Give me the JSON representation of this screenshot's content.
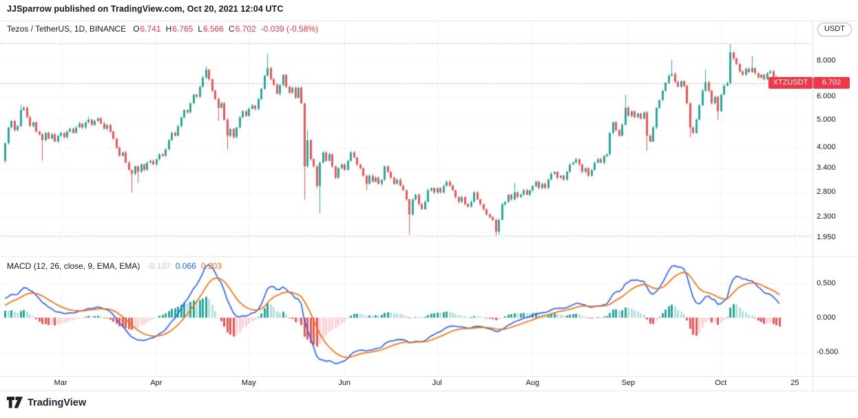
{
  "attribution": {
    "text": "JJSparrow published on TradingView.com, Oct 20, 2021 12:04 UTC"
  },
  "header": {
    "symbol_title": "Tezos / TetherUS, 1D, BINANCE",
    "ohlc": [
      {
        "label": "O",
        "value": "6.741"
      },
      {
        "label": "H",
        "value": "6.765"
      },
      {
        "label": "L",
        "value": "6.566"
      },
      {
        "label": "C",
        "value": "6.702"
      }
    ],
    "change": "-0.039 (-0.58%)"
  },
  "price_scale": {
    "currency_button": "USDT",
    "labels": [
      {
        "text": "8.000",
        "value": 8
      },
      {
        "text": "6.000",
        "value": 6
      },
      {
        "text": "5.000",
        "value": 5
      },
      {
        "text": "4.000",
        "value": 4
      },
      {
        "text": "3.400",
        "value": 3.4
      },
      {
        "text": "2.800",
        "value": 2.8
      },
      {
        "text": "2.300",
        "value": 2.3
      },
      {
        "text": "1.950",
        "value": 1.95
      }
    ],
    "last_price_label": {
      "symbol": "XTZUSDT",
      "price": "6.702",
      "value": 6.702
    }
  },
  "macd_panel": {
    "title": "MACD",
    "params": "(12, 26, close, 9, EMA, EMA)",
    "values": [
      {
        "name": "histogram",
        "text": "-0.137",
        "color": "#F9B8C2"
      },
      {
        "name": "macd",
        "text": "0.066",
        "color": "#2962FF"
      },
      {
        "name": "signal",
        "text": "0.203",
        "color": "#FF6D00"
      }
    ],
    "axis_labels": [
      {
        "text": "0.500",
        "value": 0.5
      },
      {
        "text": "0.000",
        "value": 0
      },
      {
        "text": "-0.500",
        "value": -0.5
      }
    ]
  },
  "x_axis": {
    "ticks": [
      {
        "label": "Mar",
        "day": 18
      },
      {
        "label": "Apr",
        "day": 49
      },
      {
        "label": "May",
        "day": 79
      },
      {
        "label": "Jun",
        "day": 110
      },
      {
        "label": "Jul",
        "day": 140
      },
      {
        "label": "Aug",
        "day": 171
      },
      {
        "label": "Sep",
        "day": 202
      },
      {
        "label": "Oct",
        "day": 232
      },
      {
        "label": "25",
        "day": 256
      }
    ]
  },
  "footer": {
    "brand": "TradingView"
  },
  "colors": {
    "up": "#26A69A",
    "down": "#EF5350",
    "macd_line": "#2962FF",
    "signal_line": "#FF6D00",
    "hist_grow_above": "#26A69A",
    "hist_fall_above": "#B2DFDB",
    "hist_fall_below": "#EF5350",
    "hist_grow_below": "#FFCDD2",
    "accent_red": "#F23645",
    "text": "#131722",
    "grid": "#F0F3FA",
    "border": "#E0E3EB",
    "dotted": "#787B86"
  },
  "chart_data": {
    "type": "candlestick",
    "title": "Tezos / TetherUS daily candles with MACD(12,26,9)",
    "timeframe": "1D",
    "start_date": "2021-02-11",
    "end_date": "2021-10-20",
    "range_high_line": 9.18,
    "range_low_line": 1.98,
    "current_price": 6.702,
    "first_open": 3.6,
    "closes": [
      4.15,
      4.7,
      4.95,
      4.6,
      4.75,
      5.4,
      5.5,
      5.1,
      4.75,
      4.9,
      4.55,
      4.45,
      4.25,
      4.5,
      4.3,
      4.45,
      4.2,
      4.4,
      4.5,
      4.35,
      4.55,
      4.65,
      4.5,
      4.7,
      4.85,
      4.7,
      4.9,
      5.0,
      4.8,
      4.95,
      5.05,
      4.85,
      4.65,
      4.8,
      4.55,
      4.3,
      4.0,
      3.75,
      3.85,
      3.55,
      3.35,
      3.25,
      3.45,
      3.3,
      3.5,
      3.35,
      3.55,
      3.6,
      3.5,
      3.65,
      3.8,
      3.75,
      3.95,
      4.25,
      4.5,
      4.4,
      4.75,
      5.1,
      5.4,
      5.3,
      5.7,
      6.1,
      6.0,
      6.5,
      7.0,
      7.45,
      6.9,
      6.3,
      5.9,
      5.5,
      5.7,
      5.0,
      4.4,
      4.65,
      4.35,
      4.7,
      5.1,
      5.35,
      5.15,
      5.45,
      5.6,
      5.45,
      5.9,
      6.4,
      7.1,
      7.55,
      6.9,
      6.6,
      6.15,
      6.6,
      7.15,
      6.5,
      6.2,
      6.45,
      5.95,
      6.45,
      5.7,
      3.45,
      4.25,
      3.65,
      3.45,
      2.95,
      3.55,
      3.85,
      3.6,
      3.8,
      3.45,
      3.15,
      3.4,
      3.5,
      3.35,
      3.6,
      3.85,
      3.7,
      3.5,
      3.4,
      3.2,
      3.0,
      3.2,
      3.05,
      3.15,
      3.0,
      3.1,
      3.45,
      3.3,
      3.15,
      3.0,
      3.1,
      2.95,
      2.85,
      2.65,
      2.35,
      2.65,
      2.75,
      2.55,
      2.45,
      2.6,
      2.85,
      2.9,
      2.8,
      2.9,
      2.8,
      2.95,
      3.05,
      2.95,
      2.85,
      2.7,
      2.6,
      2.7,
      2.55,
      2.5,
      2.6,
      2.8,
      2.65,
      2.55,
      2.45,
      2.35,
      2.3,
      2.25,
      2.05,
      2.25,
      2.55,
      2.6,
      2.75,
      2.65,
      2.8,
      2.7,
      2.75,
      2.85,
      2.75,
      2.85,
      2.95,
      3.05,
      2.9,
      3.0,
      2.9,
      3.1,
      3.25,
      3.3,
      3.15,
      3.2,
      3.1,
      3.3,
      3.5,
      3.55,
      3.65,
      3.5,
      3.3,
      3.4,
      3.2,
      3.35,
      3.55,
      3.65,
      3.55,
      3.75,
      3.8,
      4.5,
      4.9,
      4.6,
      4.4,
      4.8,
      5.5,
      5.15,
      5.35,
      5.1,
      5.25,
      5.05,
      5.3,
      4.4,
      4.2,
      4.7,
      5.5,
      5.85,
      6.3,
      6.7,
      7.1,
      7.2,
      6.75,
      6.5,
      6.8,
      6.55,
      5.7,
      4.7,
      4.5,
      5.0,
      5.6,
      6.3,
      6.75,
      6.3,
      5.7,
      6.0,
      5.35,
      6.1,
      6.55,
      6.7,
      8.55,
      8.15,
      7.8,
      7.35,
      7.15,
      7.5,
      7.3,
      7.55,
      7.25,
      7.0,
      7.15,
      6.9,
      7.25,
      7.35,
      7.0,
      6.85,
      6.702
    ],
    "wick_overrides": {
      "5": {
        "h": 5.62
      },
      "12": {
        "l": 3.6
      },
      "27": {
        "h": 5.12
      },
      "41": {
        "l": 2.8
      },
      "43": {
        "l": 3.02
      },
      "65": {
        "h": 7.65
      },
      "69": {
        "l": 4.95
      },
      "72": {
        "l": 3.95
      },
      "85": {
        "h": 8.45
      },
      "97": {
        "l": 2.64
      },
      "98": {
        "h": 4.6
      },
      "101": {
        "l": 2.9
      },
      "102": {
        "l": 2.37
      },
      "117": {
        "l": 2.85
      },
      "131": {
        "l": 2.0
      },
      "159": {
        "l": 1.98
      },
      "160": {
        "l": 2.0
      },
      "165": {
        "h": 3.02
      },
      "201": {
        "h": 6.1
      },
      "208": {
        "l": 3.9
      },
      "216": {
        "h": 8.05
      },
      "222": {
        "l": 4.35
      },
      "227": {
        "h": 7.45
      },
      "231": {
        "l": 5.0
      },
      "235": {
        "h": 9.18
      },
      "242": {
        "h": 8.3
      },
      "251": {
        "h": 6.765,
        "l": 6.566
      }
    },
    "macd_params": {
      "fast": 12,
      "slow": 26,
      "signal": 9
    },
    "macd_seed": {
      "macd": 0.28,
      "signal": 0.18
    }
  }
}
